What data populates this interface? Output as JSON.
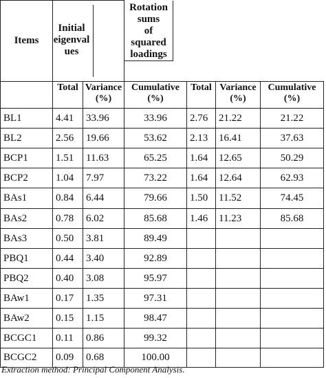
{
  "table": {
    "header": {
      "items": "Items",
      "initial_eigenvalues": [
        "Initial",
        "eigenval",
        "ues"
      ],
      "rotation_sums": [
        "Rotation",
        "sums",
        "of",
        "squared",
        "loadings"
      ]
    },
    "subheader": [
      [
        "Total"
      ],
      [
        "Variance",
        "(%)"
      ],
      [
        "Cumulative",
        "(%)"
      ],
      [
        "Total"
      ],
      [
        "Variance",
        "(%)"
      ],
      [
        "Cumulative",
        "(%)"
      ]
    ],
    "rows": [
      [
        "BL1",
        "4.41",
        "33.96",
        "33.96",
        "2.76",
        "21.22",
        "21.22"
      ],
      [
        "BL2",
        "2.56",
        "19.66",
        "53.62",
        "2.13",
        "16.41",
        "37.63"
      ],
      [
        "BCP1",
        "1.51",
        "11.63",
        "65.25",
        "1.64",
        "12.65",
        "50.29"
      ],
      [
        "BCP2",
        "1.04",
        "7.97",
        "73.22",
        "1.64",
        "12.64",
        "62.93"
      ],
      [
        "BAs1",
        "0.84",
        "6.44",
        "79.66",
        "1.50",
        "11.52",
        "74.45"
      ],
      [
        "BAs2",
        "0.78",
        "6.02",
        "85.68",
        "1.46",
        "11.23",
        "85.68"
      ],
      [
        "BAs3",
        "0.50",
        "3.81",
        "89.49",
        "",
        "",
        ""
      ],
      [
        "PBQ1",
        "0.44",
        "3.40",
        "92.89",
        "",
        "",
        ""
      ],
      [
        "PBQ2",
        "0.40",
        "3.08",
        "95.97",
        "",
        "",
        ""
      ],
      [
        "BAw1",
        "0.17",
        "1.35",
        "97.31",
        "",
        "",
        ""
      ],
      [
        "BAw2",
        "0.15",
        "1.15",
        "98.47",
        "",
        "",
        ""
      ],
      [
        "BCGC1",
        "0.11",
        "0.86",
        "99.32",
        "",
        "",
        ""
      ],
      [
        "BCGC2",
        "0.09",
        "0.68",
        "100.00",
        "",
        "",
        ""
      ]
    ]
  },
  "note": "Extraction method: Principal Component Analysis."
}
